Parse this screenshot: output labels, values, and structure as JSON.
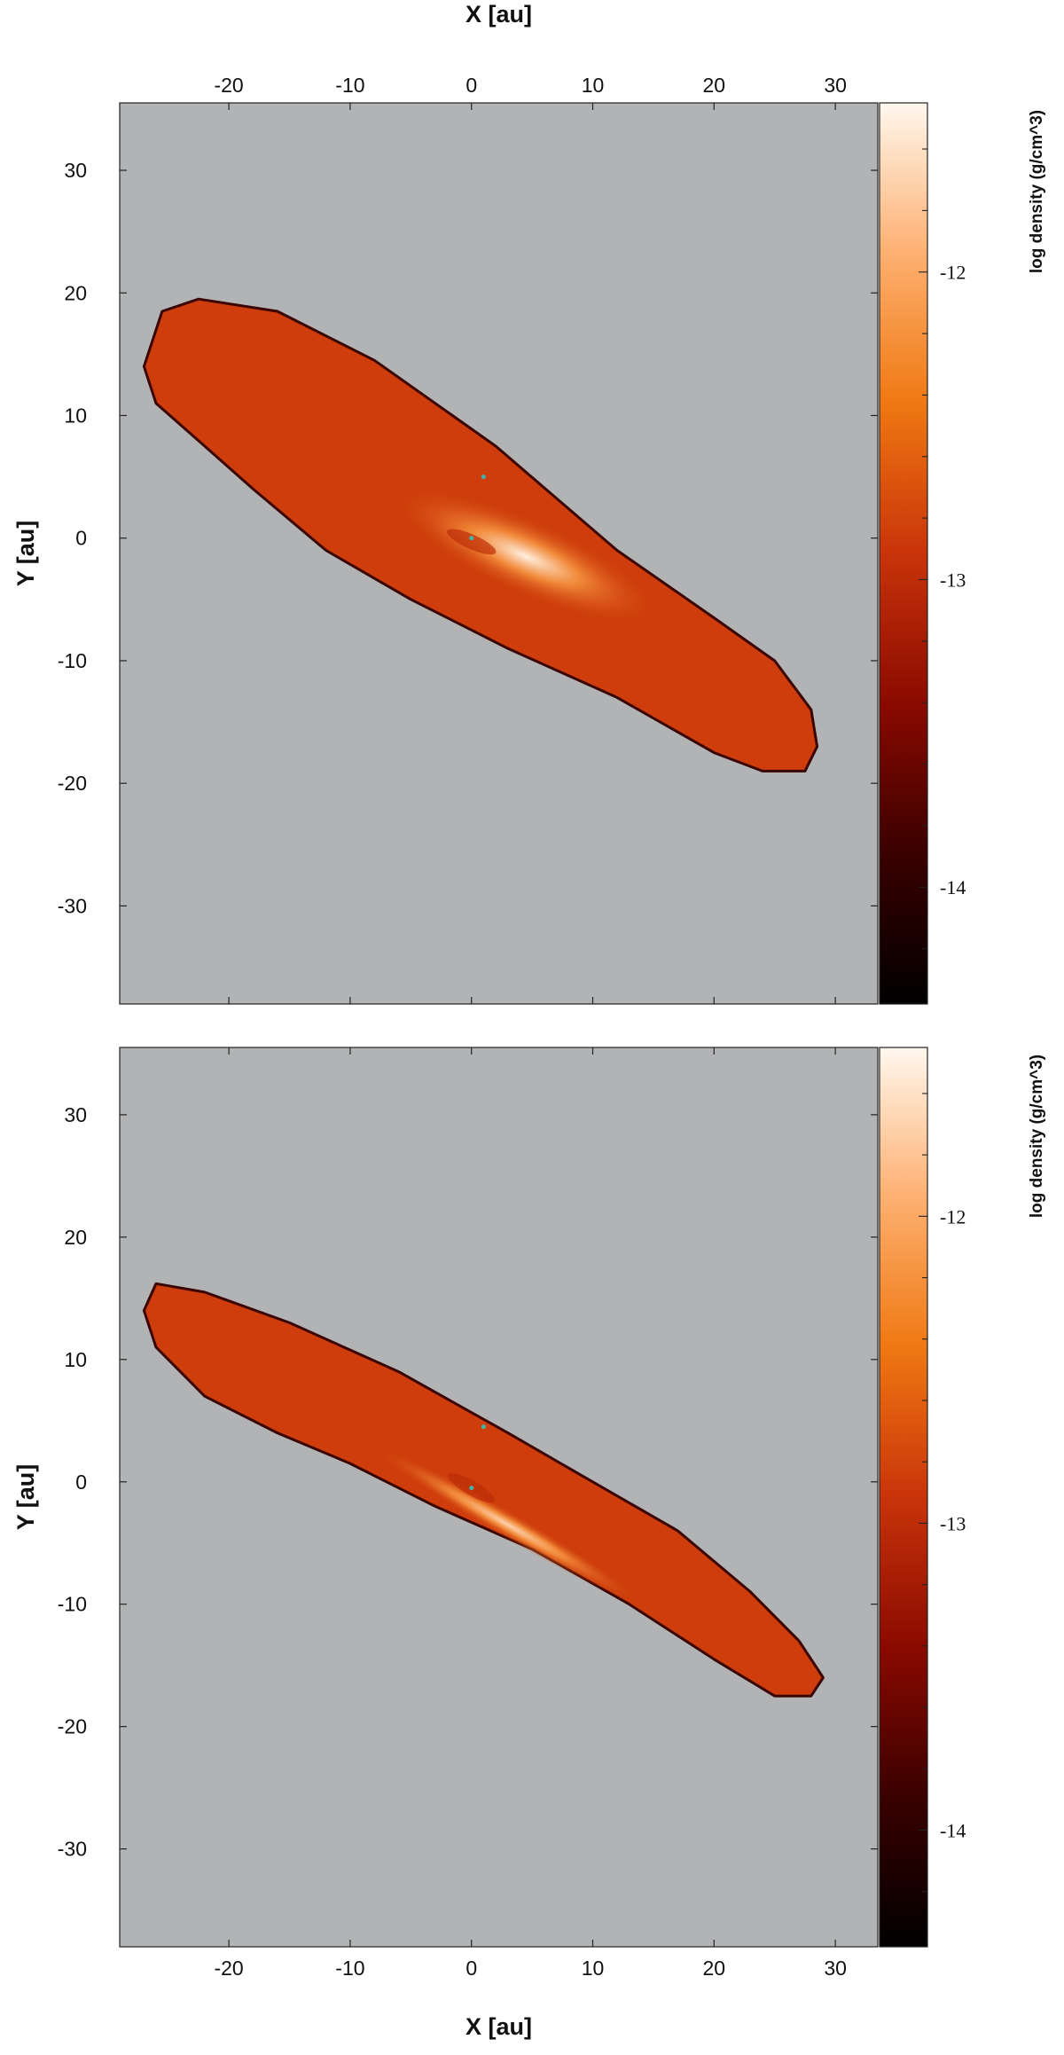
{
  "chart_data": [
    {
      "type": "heatmap",
      "panel": "top",
      "title": "",
      "xlabel": "X [au]",
      "ylabel": "Y [au]",
      "xlim": [
        -29,
        33.5
      ],
      "ylim": [
        -38,
        35.5
      ],
      "xticks": [
        -20,
        -10,
        0,
        10,
        20,
        30
      ],
      "xtick_labels": [
        "-20",
        "-10",
        "0",
        "10",
        "20",
        "30"
      ],
      "yticks": [
        30,
        20,
        10,
        0,
        -10,
        -20,
        -30
      ],
      "ytick_labels": [
        "30",
        "20",
        "10",
        "0",
        "-10",
        "-20",
        "-30"
      ],
      "x_axis_position": "top",
      "background_color": "#b2b3b5",
      "colorbar": {
        "label": "log density (g/cm^3)",
        "range": [
          -14.38,
          -11.45
        ],
        "ticks": [
          -12,
          -13,
          -14
        ],
        "tick_labels": [
          "-12",
          "-13",
          "-14"
        ],
        "colors": [
          "#000000",
          "#3a0000",
          "#8a0a00",
          "#c9340a",
          "#ef7812",
          "#fdb070",
          "#fff7ee"
        ]
      },
      "disk": {
        "center": [
          1,
          0
        ],
        "outline_x": [
          -27,
          -25.5,
          -22.5,
          -16,
          -8,
          2,
          12,
          20,
          25,
          28,
          28.5,
          27.5,
          24,
          20,
          12,
          3,
          -5,
          -12,
          -18,
          -22,
          -26
        ],
        "outline_y": [
          14,
          18.5,
          19.5,
          18.5,
          14.5,
          7.5,
          -1,
          -6.5,
          -10,
          -14,
          -17,
          -19,
          -19,
          -17.5,
          -13,
          -9,
          -5,
          -1,
          4,
          7.5,
          11
        ],
        "bright_core_center": [
          4.5,
          -1.5
        ],
        "bright_core_peak": -11.5
      },
      "markers": [
        {
          "x": 1,
          "y": 5
        },
        {
          "x": 0,
          "y": 0
        }
      ]
    },
    {
      "type": "heatmap",
      "panel": "bottom",
      "title": "",
      "xlabel": "X [au]",
      "ylabel": "Y [au]",
      "xlim": [
        -29,
        33.5
      ],
      "ylim": [
        -38,
        35.5
      ],
      "xticks": [
        -20,
        -10,
        0,
        10,
        20,
        30
      ],
      "xtick_labels": [
        "-20",
        "-10",
        "0",
        "10",
        "20",
        "30"
      ],
      "yticks": [
        30,
        20,
        10,
        0,
        -10,
        -20,
        -30
      ],
      "ytick_labels": [
        "30",
        "20",
        "10",
        "0",
        "-10",
        "-20",
        "-30"
      ],
      "x_axis_position": "bottom",
      "background_color": "#b2b3b5",
      "colorbar": {
        "label": "log density (g/cm^3)",
        "range": [
          -14.38,
          -11.45
        ],
        "ticks": [
          -12,
          -13,
          -14
        ],
        "tick_labels": [
          "-12",
          "-13",
          "-14"
        ],
        "colors": [
          "#000000",
          "#3a0000",
          "#8a0a00",
          "#c9340a",
          "#ef7812",
          "#fdb070",
          "#fff7ee"
        ]
      },
      "disk": {
        "center": [
          1,
          0
        ],
        "outline_x": [
          -27,
          -26,
          -22,
          -15,
          -6,
          3,
          10,
          17,
          23,
          27,
          29,
          28,
          25,
          20,
          13,
          5,
          -3,
          -10,
          -16,
          -22,
          -26
        ],
        "outline_y": [
          14,
          16.2,
          15.5,
          13,
          9,
          4,
          0,
          -4,
          -9,
          -13,
          -16,
          -17.5,
          -17.5,
          -14.5,
          -10,
          -5.5,
          -2,
          1.5,
          4,
          7,
          11
        ],
        "bright_core_center": [
          3,
          -3.5
        ],
        "bright_core_peak": -11.7
      },
      "markers": [
        {
          "x": 1,
          "y": 4.5
        },
        {
          "x": 0,
          "y": -0.5
        }
      ]
    }
  ]
}
